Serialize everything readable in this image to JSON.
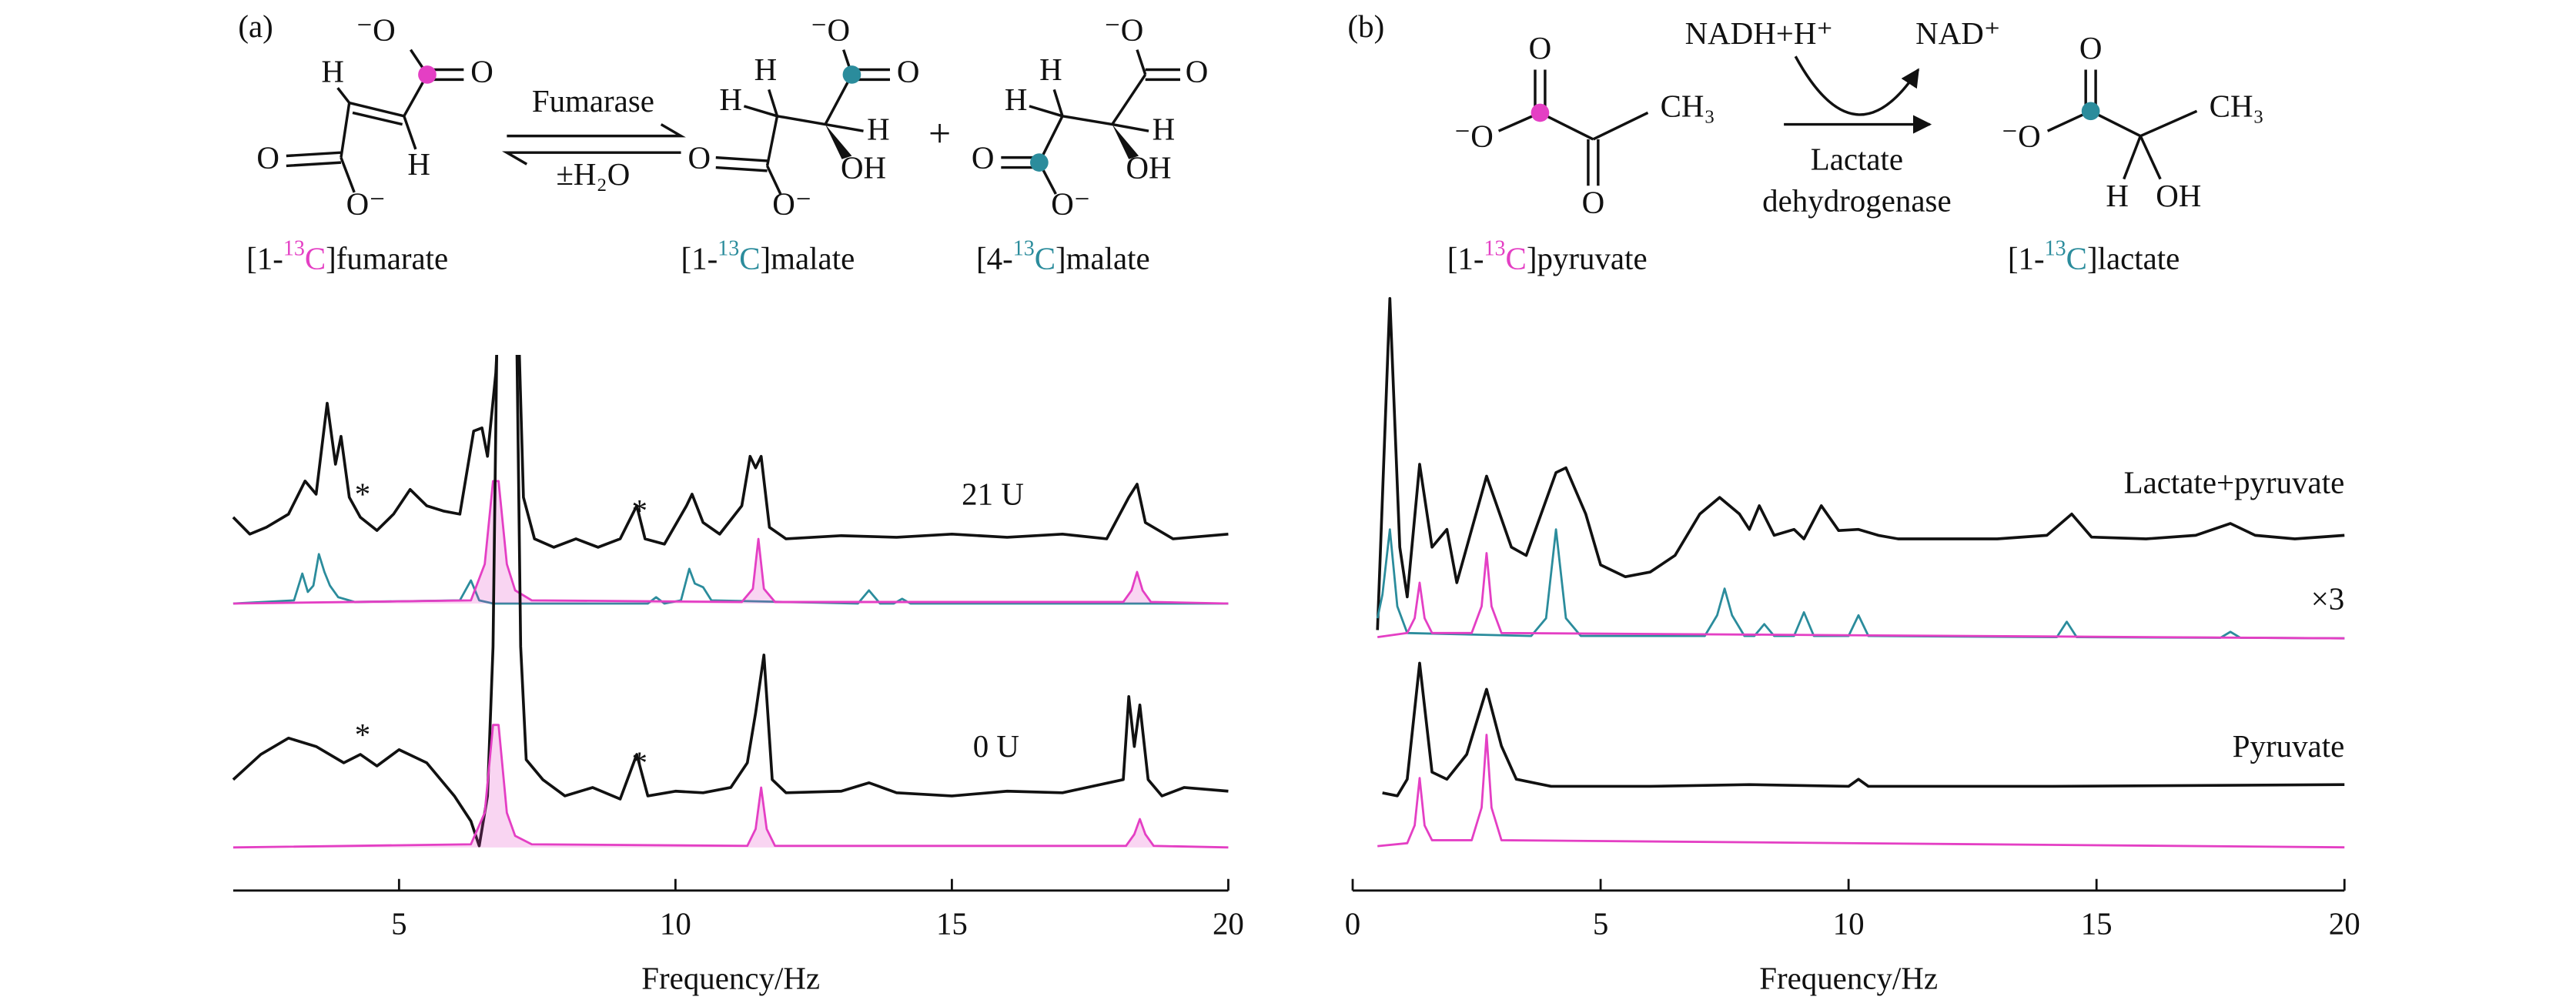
{
  "panel_labels": [
    "(a)",
    "(b)"
  ],
  "scheme_a": {
    "atoms": [
      "⁻O",
      "O",
      "H",
      "H",
      "O",
      "O⁻",
      "⁻O",
      "O",
      "H",
      "H",
      "H",
      "OH",
      "O",
      "O⁻",
      "⁻O",
      "O",
      "H",
      "H",
      "H",
      "OH",
      "O",
      "O⁻"
    ],
    "enzyme": "Fumarase",
    "condition": "±H₂O",
    "plus": "+",
    "compounds": [
      {
        "pre": "[1-",
        "iso": "13",
        "el": "C",
        "post": "]fumarate",
        "color": "#e43fc4"
      },
      {
        "pre": "[1-",
        "iso": "13",
        "el": "C",
        "post": "]malate",
        "color": "#2b8c9c"
      },
      {
        "pre": "[4-",
        "iso": "13",
        "el": "C",
        "post": "]malate",
        "color": "#2b8c9c"
      }
    ]
  },
  "scheme_b": {
    "atoms": [
      "O",
      "⁻O",
      "CH₃",
      "O",
      "O",
      "⁻O",
      "CH₃",
      "H",
      "OH"
    ],
    "cofactor_in": "NADH+H⁺",
    "cofactor_out": "NAD⁺",
    "enzyme": [
      "Lactate",
      "dehydrogenase"
    ],
    "compounds": [
      {
        "pre": "[1-",
        "iso": "13",
        "el": "C",
        "post": "]pyruvate",
        "color": "#e43fc4"
      },
      {
        "pre": "[1-",
        "iso": "13",
        "el": "C",
        "post": "]lactate",
        "color": "#2b8c9c"
      }
    ]
  },
  "chart_data": [
    {
      "type": "line",
      "xlim": [
        2,
        20
      ],
      "xticks": [
        5,
        10,
        15,
        20
      ],
      "ylim": [
        0,
        100
      ],
      "xlabel": "Frequency/Hz",
      "annotations": [
        "*",
        "*",
        "21 U",
        "*",
        "*",
        "0 U"
      ],
      "series": [
        {
          "color": "#111111",
          "x": [
            2,
            2.3,
            2.6,
            3.0,
            3.3,
            3.5,
            3.7,
            3.85,
            3.95,
            4.1,
            4.3,
            4.6,
            4.9,
            5.2,
            5.5,
            5.8,
            6.1,
            6.35,
            6.5,
            6.6,
            6.75,
            6.9,
            7.1,
            7.25,
            7.45,
            7.8,
            8.2,
            8.6,
            9.0,
            9.3,
            9.45,
            9.8,
            10.2,
            10.3,
            10.5,
            10.8,
            11.2,
            11.35,
            11.45,
            11.55,
            11.7,
            12,
            13,
            14,
            15,
            16,
            17,
            17.8,
            18.2,
            18.35,
            18.5,
            19,
            20
          ],
          "values": [
            71.0,
            67.8,
            69.1,
            71.6,
            77.9,
            75.4,
            92.7,
            81.1,
            86.4,
            74.8,
            71.0,
            68.5,
            71.6,
            76.3,
            73.2,
            72.2,
            71.6,
            87.4,
            88.0,
            82.6,
            98.4,
            130,
            130,
            74.8,
            66.9,
            65.3,
            66.9,
            65.3,
            66.9,
            73.2,
            66.9,
            65.9,
            73.2,
            75.4,
            70.0,
            67.8,
            73.2,
            82.6,
            80.4,
            82.6,
            69.1,
            66.9,
            67.5,
            67.2,
            67.8,
            67.2,
            67.8,
            66.9,
            74.8,
            77.3,
            70.0,
            66.9,
            67.8
          ]
        },
        {
          "color": "#2b8c9c",
          "x": [
            2,
            3.1,
            3.25,
            3.35,
            3.45,
            3.55,
            3.65,
            3.75,
            3.9,
            4.2,
            6.1,
            6.3,
            6.45,
            6.7,
            9.5,
            9.65,
            9.8,
            10.1,
            10.25,
            10.35,
            10.5,
            10.65,
            13.3,
            13.5,
            13.7,
            13.95,
            14.1,
            14.25,
            20
          ],
          "values": [
            54.6,
            55.2,
            60.3,
            56.8,
            58.0,
            64.0,
            60.6,
            58.0,
            55.8,
            54.9,
            55.2,
            59.0,
            55.2,
            54.6,
            54.6,
            55.8,
            54.6,
            55.2,
            61.2,
            58.4,
            57.7,
            55.2,
            54.6,
            57.1,
            54.6,
            54.6,
            55.5,
            54.6,
            54.6
          ]
        },
        {
          "color": "#e43fc4",
          "fill": true,
          "x": [
            2,
            6.3,
            6.55,
            6.7,
            6.8,
            6.95,
            7.1,
            7.4,
            11.2,
            11.4,
            11.5,
            11.6,
            11.8,
            18.1,
            18.25,
            18.35,
            18.45,
            18.6,
            20
          ],
          "values": [
            54.6,
            55.2,
            62.1,
            77.9,
            77.9,
            62.1,
            57.1,
            55.2,
            54.9,
            57.4,
            66.9,
            57.4,
            54.9,
            54.9,
            57.1,
            60.6,
            57.1,
            54.9,
            54.6
          ]
        },
        {
          "color": "#111111",
          "x": [
            2,
            2.5,
            3,
            3.5,
            4,
            4.3,
            4.6,
            5,
            5.5,
            6,
            6.3,
            6.45,
            6.6,
            6.7,
            6.8,
            7.1,
            7.2,
            7.3,
            7.6,
            8,
            8.5,
            9,
            9.3,
            9.5,
            10,
            10.5,
            11,
            11.3,
            11.45,
            11.6,
            11.75,
            12,
            13,
            13.5,
            14,
            15,
            16,
            17,
            18.1,
            18.2,
            18.3,
            18.4,
            18.55,
            18.8,
            19.2,
            20
          ],
          "values": [
            21.1,
            25.9,
            29.0,
            27.4,
            24.3,
            25.9,
            23.7,
            26.8,
            24.3,
            18.0,
            13.2,
            8.5,
            18.0,
            46.4,
            130,
            130,
            46.4,
            24.9,
            21.1,
            18.0,
            19.6,
            17.4,
            25.9,
            18.0,
            18.9,
            18.6,
            19.6,
            24.3,
            33.8,
            44.8,
            21.1,
            18.6,
            18.9,
            20.5,
            18.6,
            18.0,
            18.9,
            18.6,
            21.1,
            36.9,
            27.4,
            35.3,
            21.1,
            18.0,
            19.6,
            18.9
          ]
        },
        {
          "color": "#e43fc4",
          "fill": true,
          "x": [
            2,
            6.3,
            6.55,
            6.7,
            6.8,
            6.95,
            7.1,
            7.4,
            11.3,
            11.45,
            11.55,
            11.65,
            11.8,
            18.15,
            18.3,
            18.4,
            18.5,
            18.65,
            20
          ],
          "values": [
            8.2,
            8.8,
            14.8,
            31.5,
            31.5,
            14.8,
            10.4,
            8.8,
            8.5,
            11.7,
            19.6,
            11.7,
            8.5,
            8.5,
            10.7,
            13.6,
            10.7,
            8.5,
            8.2
          ]
        }
      ]
    },
    {
      "type": "line",
      "xlim": [
        0,
        20
      ],
      "xticks": [
        0,
        5,
        10,
        15,
        20
      ],
      "ylim": [
        0,
        100
      ],
      "xlabel": "Frequency/Hz",
      "annotations": [
        "Lactate+pyruvate",
        "×3",
        "Pyruvate"
      ],
      "series": [
        {
          "color": "#111111",
          "x": [
            0.5,
            0.75,
            0.95,
            1.1,
            1.35,
            1.6,
            1.9,
            2.1,
            2.7,
            3.2,
            3.5,
            4.1,
            4.3,
            4.7,
            5.0,
            5.5,
            6.0,
            6.5,
            7.0,
            7.4,
            7.8,
            8.0,
            8.2,
            8.5,
            8.9,
            9.1,
            9.45,
            9.8,
            10.2,
            10.6,
            11,
            12,
            13,
            14,
            14.5,
            14.9,
            16,
            17,
            17.7,
            18.2,
            19,
            20
          ],
          "values": [
            44,
            100,
            58,
            49.6,
            72,
            58,
            61,
            52,
            70,
            58,
            56.6,
            70.6,
            71.4,
            63.6,
            55,
            53,
            53.8,
            56.6,
            63.6,
            66.4,
            63.6,
            61,
            65,
            60,
            61,
            59.4,
            65,
            60.8,
            61,
            60,
            59.4,
            59.4,
            59.4,
            60,
            63.6,
            59.7,
            59.4,
            60,
            62,
            60,
            59.4,
            60
          ]
        },
        {
          "color": "#2b8c9c",
          "x": [
            0.5,
            0.6,
            0.75,
            0.9,
            1.1,
            3.6,
            3.9,
            4.1,
            4.3,
            4.6,
            7.1,
            7.35,
            7.5,
            7.65,
            7.9,
            8.1,
            8.3,
            8.5,
            8.9,
            9.1,
            9.3,
            10.0,
            10.2,
            10.4,
            14.2,
            14.4,
            14.6,
            17.5,
            17.7,
            17.9,
            20
          ],
          "values": [
            46,
            50,
            61,
            48,
            43.5,
            43,
            46,
            61,
            46,
            43,
            43,
            46.5,
            51,
            46.5,
            43,
            43,
            45,
            43,
            43,
            47,
            43,
            43,
            46.5,
            43,
            42.8,
            45.4,
            42.8,
            42.7,
            43.7,
            42.7,
            42.6
          ]
        },
        {
          "color": "#e43fc4",
          "x": [
            0.5,
            1.1,
            1.25,
            1.35,
            1.45,
            1.6,
            2.4,
            2.6,
            2.7,
            2.8,
            3.0,
            20
          ],
          "values": [
            42.8,
            43.5,
            46,
            52,
            46,
            43.5,
            43.5,
            48,
            57,
            48,
            43.5,
            42.6
          ]
        },
        {
          "color": "#111111",
          "x": [
            0.6,
            0.9,
            1.1,
            1.35,
            1.6,
            1.9,
            2.3,
            2.7,
            3.0,
            3.3,
            4,
            6,
            8,
            10,
            10.2,
            10.4,
            14,
            20
          ],
          "values": [
            16.5,
            16,
            18.8,
            38.4,
            20,
            18.8,
            23,
            34,
            24.4,
            18.8,
            17.6,
            17.6,
            17.9,
            17.6,
            18.8,
            17.6,
            17.6,
            17.9
          ]
        },
        {
          "color": "#e43fc4",
          "x": [
            0.5,
            1.1,
            1.25,
            1.35,
            1.45,
            1.6,
            2.4,
            2.6,
            2.7,
            2.8,
            3.0,
            20
          ],
          "values": [
            7.5,
            8,
            11,
            19,
            11,
            8.5,
            8.5,
            14,
            26.3,
            14,
            8.5,
            7.3
          ]
        }
      ]
    }
  ]
}
